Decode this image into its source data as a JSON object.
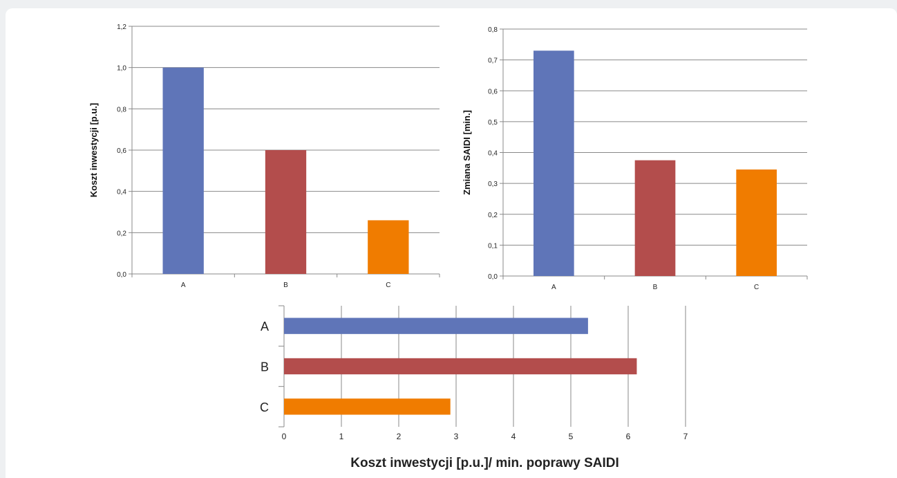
{
  "colors": {
    "series": [
      "#5f75b8",
      "#b34d4c",
      "#f07c00"
    ],
    "grid": "#888888",
    "background": "#ffffff"
  },
  "chart_data": [
    {
      "type": "bar",
      "categories": [
        "A",
        "B",
        "C"
      ],
      "values": [
        1.0,
        0.6,
        0.26
      ],
      "ylabel": "Koszt inwestycji [p.u.]",
      "ylim": [
        0,
        1.2
      ],
      "yticks": [
        "0,0",
        "0,2",
        "0,4",
        "0,6",
        "0,8",
        "1,0",
        "1,2"
      ],
      "grid": true
    },
    {
      "type": "bar",
      "categories": [
        "A",
        "B",
        "C"
      ],
      "values": [
        0.73,
        0.375,
        0.345
      ],
      "ylabel": "Zmiana SAIDI [min.]",
      "ylim": [
        0,
        0.8
      ],
      "yticks": [
        "0,0",
        "0,1",
        "0,2",
        "0,3",
        "0,4",
        "0,5",
        "0,6",
        "0,7",
        "0,8"
      ],
      "grid": true
    },
    {
      "type": "bar",
      "orientation": "horizontal",
      "categories": [
        "A",
        "B",
        "C"
      ],
      "values": [
        5.3,
        6.15,
        2.9
      ],
      "xlabel": "Koszt inwestycji [p.u.]/ min. poprawy SAIDI",
      "xlim": [
        0,
        7
      ],
      "xticks": [
        "0",
        "1",
        "2",
        "3",
        "4",
        "5",
        "6",
        "7"
      ],
      "grid": true
    }
  ]
}
